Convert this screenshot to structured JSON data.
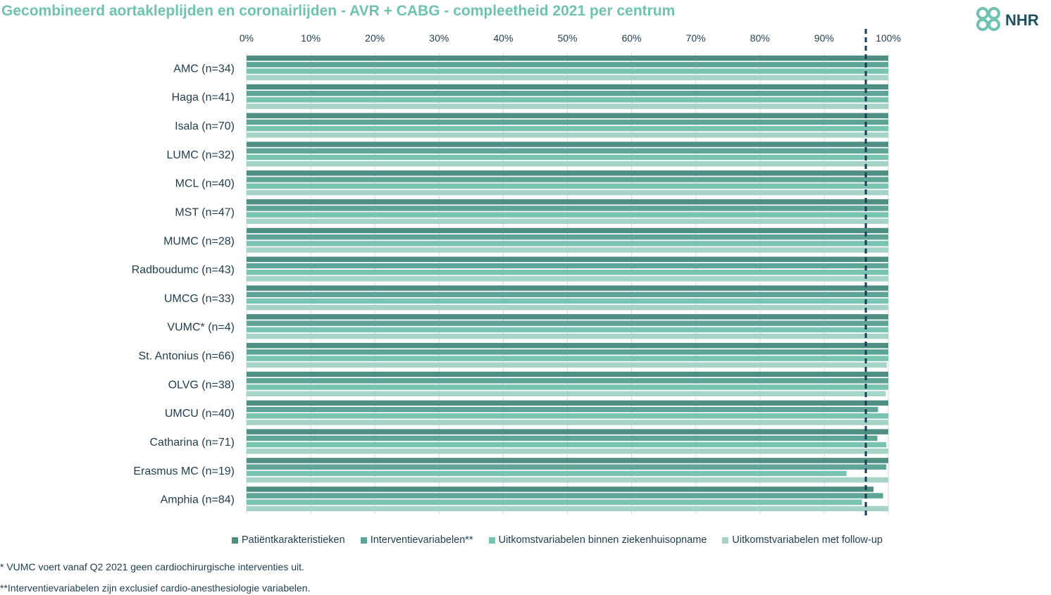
{
  "chart_data": {
    "type": "bar",
    "orientation": "horizontal",
    "title": "Gecombineerd aortakleplijden en coronairlijden - AVR + CABG - compleetheid 2021 per centrum",
    "xlim": [
      0,
      100
    ],
    "xticks": [
      "0%",
      "10%",
      "20%",
      "30%",
      "40%",
      "50%",
      "60%",
      "70%",
      "80%",
      "90%",
      "100%"
    ],
    "reference_line": 96.5,
    "categories": [
      "AMC (n=34)",
      "Haga (n=41)",
      "Isala (n=70)",
      "LUMC (n=32)",
      "MCL (n=40)",
      "MST (n=47)",
      "MUMC (n=28)",
      "Radboudumc (n=43)",
      "UMCG (n=33)",
      "VUMC* (n=4)",
      "St. Antonius (n=66)",
      "OLVG (n=38)",
      "UMCU (n=40)",
      "Catharina (n=71)",
      "Erasmus MC (n=19)",
      "Amphia (n=84)"
    ],
    "series": [
      {
        "name": "Patiëntkarakteristieken",
        "color": "#4f8e82",
        "values": [
          100,
          100,
          100,
          100,
          100,
          100,
          100,
          100,
          100,
          100,
          100,
          100,
          100,
          100,
          100,
          97.7
        ]
      },
      {
        "name": "Interventievariabelen**",
        "color": "#5ea597",
        "values": [
          100,
          100,
          100,
          100,
          100,
          100,
          100,
          100,
          100,
          100,
          100,
          100,
          98.4,
          98.3,
          99.7,
          99.2
        ]
      },
      {
        "name": "Uitkomstvariabelen binnen ziekenhuisopname",
        "color": "#78c3b2",
        "values": [
          100,
          100,
          100,
          100,
          100,
          100,
          100,
          100,
          100,
          100,
          100,
          100,
          100,
          99.7,
          93.5,
          95.9
        ]
      },
      {
        "name": "Uitkomstvariabelen met follow-up",
        "color": "#a6d3c8",
        "values": [
          100,
          100,
          100,
          100,
          100,
          100,
          100,
          100,
          100,
          100,
          99.8,
          99.6,
          100,
          100,
          100,
          100
        ]
      }
    ],
    "legend_position": "bottom",
    "grid": true
  },
  "footnotes": [
    "* VUMC voert vanaf Q2 2021 geen cardiochirurgische interventies uit.",
    "**Interventievariabelen zijn exclusief cardio-anesthesiologie variabelen."
  ],
  "logo": {
    "text": "NHR",
    "color": "#1f5060"
  }
}
